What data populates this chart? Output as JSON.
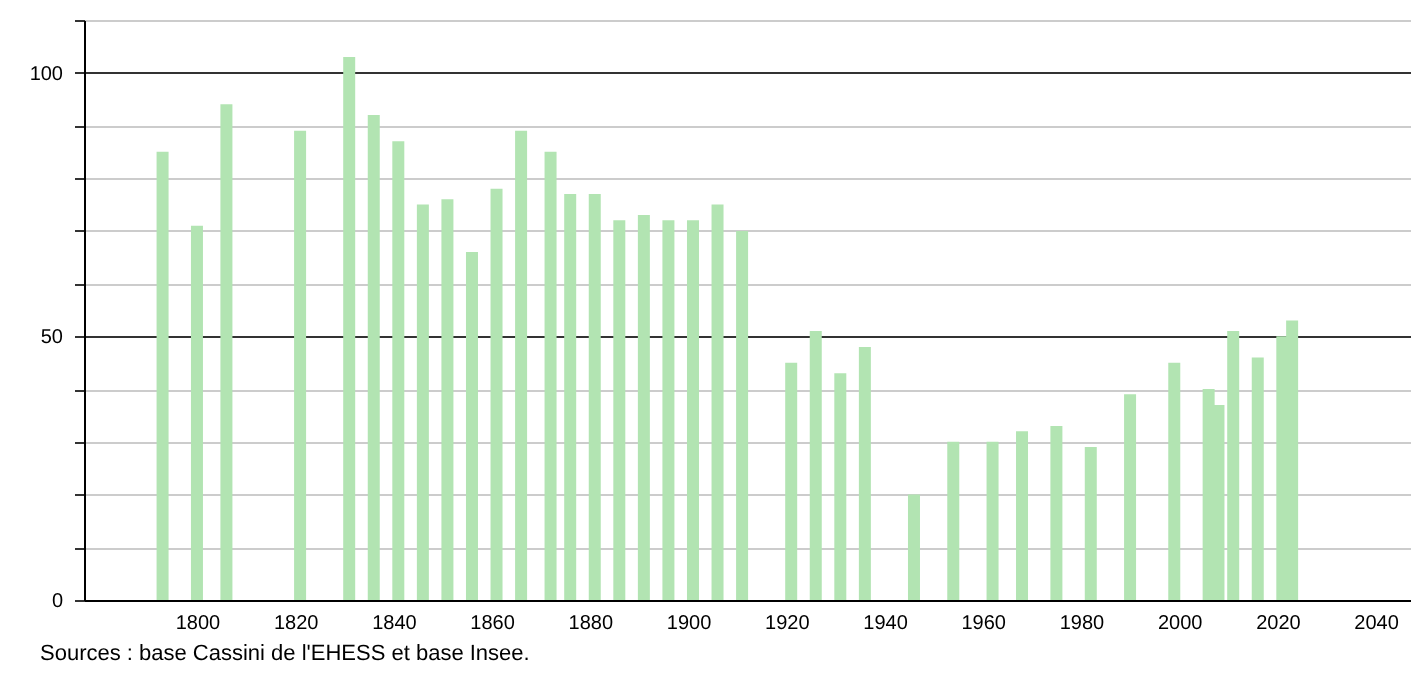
{
  "chart_data": {
    "type": "bar",
    "x": [
      1793,
      1800,
      1806,
      1821,
      1831,
      1836,
      1841,
      1846,
      1851,
      1856,
      1861,
      1866,
      1872,
      1876,
      1881,
      1886,
      1891,
      1896,
      1901,
      1906,
      1911,
      1921,
      1926,
      1931,
      1936,
      1946,
      1954,
      1962,
      1968,
      1975,
      1982,
      1990,
      1999,
      2006,
      2008,
      2011,
      2016,
      2021,
      2023
    ],
    "values": [
      85,
      71,
      94,
      89,
      103,
      92,
      87,
      75,
      76,
      66,
      78,
      89,
      85,
      77,
      77,
      72,
      73,
      72,
      72,
      75,
      70,
      45,
      51,
      43,
      48,
      20,
      30,
      30,
      32,
      33,
      29,
      39,
      45,
      40,
      37,
      51,
      46,
      50,
      53
    ],
    "color": "#b2e4b2",
    "xlim": [
      1777,
      2047
    ],
    "xticks": [
      1800,
      1820,
      1840,
      1860,
      1880,
      1900,
      1920,
      1940,
      1960,
      1980,
      2000,
      2020,
      2040
    ],
    "ylim": [
      0,
      110
    ],
    "yticks": [
      0,
      {
        "value": 10,
        "label": null
      },
      {
        "value": 20,
        "label": null
      },
      {
        "value": 30,
        "label": null
      },
      {
        "value": 40,
        "label": null
      },
      50,
      {
        "value": 60,
        "label": null
      },
      {
        "value": 70,
        "label": null
      },
      {
        "value": 80,
        "label": null
      },
      {
        "value": 90,
        "label": null
      },
      100,
      {
        "value": 110,
        "label": null
      }
    ],
    "grid": "y",
    "annotations": [
      "Sources : base Cassini de l'EHESS et base Insee."
    ]
  }
}
